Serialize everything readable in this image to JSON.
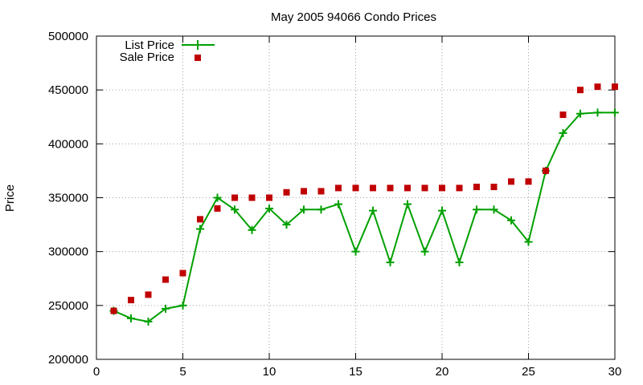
{
  "chart_data": {
    "type": "line",
    "title": "May 2005 94066 Condo Prices",
    "xlabel": "",
    "ylabel": "Price",
    "xlim": [
      0,
      30
    ],
    "ylim": [
      200000,
      500000
    ],
    "xticks": [
      0,
      5,
      10,
      15,
      20,
      25,
      30
    ],
    "yticks": [
      200000,
      250000,
      300000,
      350000,
      400000,
      450000,
      500000
    ],
    "grid": true,
    "legend_position": "top-left",
    "x": [
      1,
      2,
      3,
      4,
      5,
      6,
      7,
      8,
      9,
      10,
      11,
      12,
      13,
      14,
      15,
      16,
      17,
      18,
      19,
      20,
      21,
      22,
      23,
      24,
      25,
      26,
      27,
      28,
      29,
      30
    ],
    "series": [
      {
        "name": "List Price",
        "style": "lines+points",
        "marker": "plus",
        "color": "#00a000",
        "values": [
          245000,
          238000,
          235000,
          247000,
          250000,
          321000,
          350000,
          339000,
          320000,
          340000,
          325000,
          339000,
          339000,
          344000,
          300000,
          338000,
          290000,
          344000,
          300000,
          338000,
          290000,
          339000,
          339000,
          329000,
          309000,
          375000,
          410000,
          428000,
          429000,
          429000
        ]
      },
      {
        "name": "Sale Price",
        "style": "points",
        "marker": "square",
        "color": "#c00000",
        "values": [
          245000,
          255000,
          260000,
          274000,
          280000,
          330000,
          340000,
          350000,
          350000,
          350000,
          355000,
          356000,
          356000,
          359000,
          359000,
          359000,
          359000,
          359000,
          359000,
          359000,
          359000,
          360000,
          360000,
          365000,
          365000,
          375000,
          427000,
          450000,
          453000,
          453000
        ]
      }
    ]
  }
}
